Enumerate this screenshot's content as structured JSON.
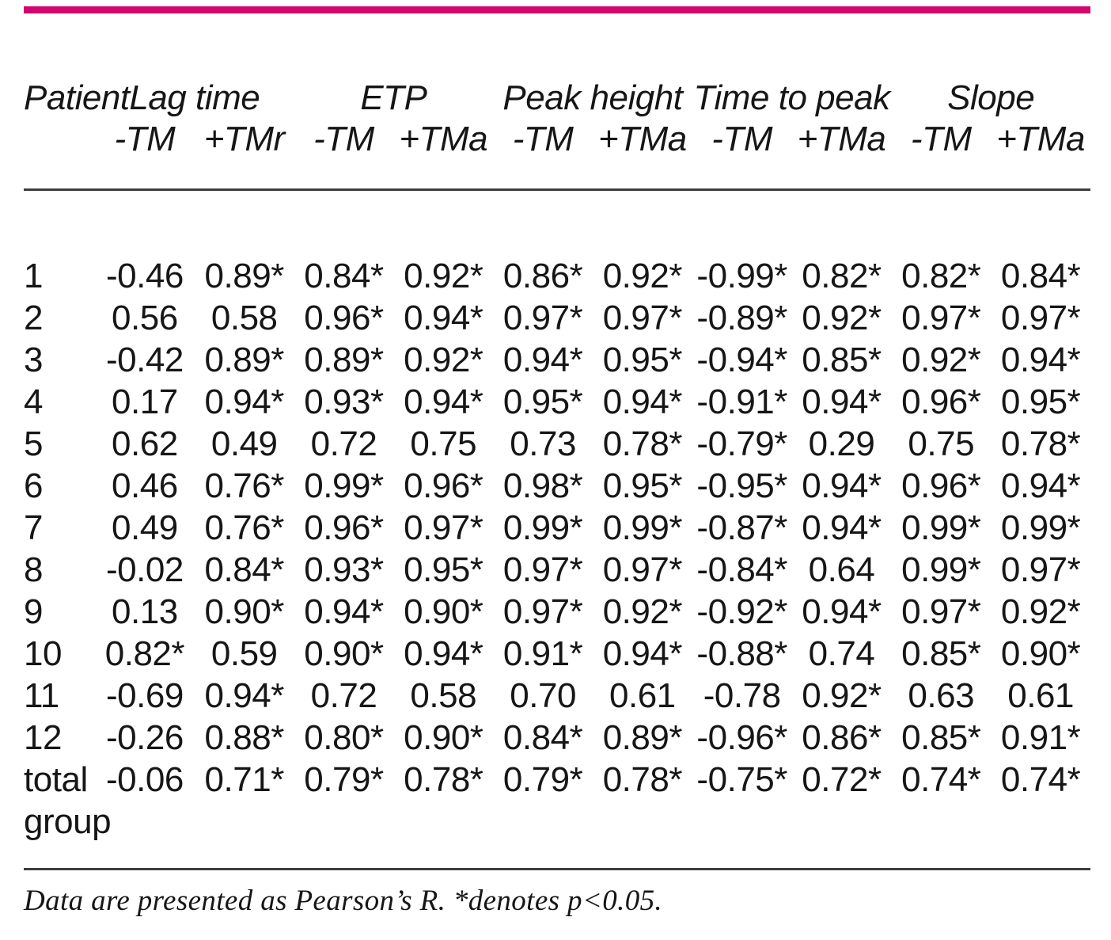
{
  "page": {
    "accent_color": "#d1066f",
    "rule_color": "#3d3d3d"
  },
  "table": {
    "column_groups": [
      {
        "label": "Patient",
        "span": 1
      },
      {
        "label": "Lag time",
        "span": 2
      },
      {
        "label": "ETP",
        "span": 2
      },
      {
        "label": "Peak height",
        "span": 2
      },
      {
        "label": "Time to peak",
        "span": 2
      },
      {
        "label": "Slope",
        "span": 2
      }
    ],
    "sub_headers": [
      "-TM",
      "+TMr",
      "-TM",
      "+TMa",
      "-TM",
      "+TMa",
      "-TM",
      "+TMa",
      "-TM",
      "+TMa"
    ],
    "rows": [
      {
        "patient": "1",
        "values": [
          "-0.46",
          "0.89*",
          "0.84*",
          "0.92*",
          "0.86*",
          "0.92*",
          "-0.99*",
          "0.82*",
          "0.82*",
          "0.84*"
        ]
      },
      {
        "patient": "2",
        "values": [
          "0.56",
          "0.58",
          "0.96*",
          "0.94*",
          "0.97*",
          "0.97*",
          "-0.89*",
          "0.92*",
          "0.97*",
          "0.97*"
        ]
      },
      {
        "patient": "3",
        "values": [
          "-0.42",
          "0.89*",
          "0.89*",
          "0.92*",
          "0.94*",
          "0.95*",
          "-0.94*",
          "0.85*",
          "0.92*",
          "0.94*"
        ]
      },
      {
        "patient": "4",
        "values": [
          "0.17",
          "0.94*",
          "0.93*",
          "0.94*",
          "0.95*",
          "0.94*",
          "-0.91*",
          "0.94*",
          "0.96*",
          "0.95*"
        ]
      },
      {
        "patient": "5",
        "values": [
          "0.62",
          "0.49",
          "0.72",
          "0.75",
          "0.73",
          "0.78*",
          "-0.79*",
          "0.29",
          "0.75",
          "0.78*"
        ]
      },
      {
        "patient": "6",
        "values": [
          "0.46",
          "0.76*",
          "0.99*",
          "0.96*",
          "0.98*",
          "0.95*",
          "-0.95*",
          "0.94*",
          "0.96*",
          "0.94*"
        ]
      },
      {
        "patient": "7",
        "values": [
          "0.49",
          "0.76*",
          "0.96*",
          "0.97*",
          "0.99*",
          "0.99*",
          "-0.87*",
          "0.94*",
          "0.99*",
          "0.99*"
        ]
      },
      {
        "patient": "8",
        "values": [
          "-0.02",
          "0.84*",
          "0.93*",
          "0.95*",
          "0.97*",
          "0.97*",
          "-0.84*",
          "0.64",
          "0.99*",
          "0.97*"
        ]
      },
      {
        "patient": "9",
        "values": [
          "0.13",
          "0.90*",
          "0.94*",
          "0.90*",
          "0.97*",
          "0.92*",
          "-0.92*",
          "0.94*",
          "0.97*",
          "0.92*"
        ]
      },
      {
        "patient": "10",
        "values": [
          "0.82*",
          "0.59",
          "0.90*",
          "0.94*",
          "0.91*",
          "0.94*",
          "-0.88*",
          "0.74",
          "0.85*",
          "0.90*"
        ]
      },
      {
        "patient": "11",
        "values": [
          "-0.69",
          "0.94*",
          "0.72",
          "0.58",
          "0.70",
          "0.61",
          "-0.78",
          "0.92*",
          "0.63",
          "0.61"
        ]
      },
      {
        "patient": "12",
        "values": [
          "-0.26",
          "0.88*",
          "0.80*",
          "0.90*",
          "0.84*",
          "0.89*",
          "-0.96*",
          "0.86*",
          "0.85*",
          "0.91*"
        ]
      },
      {
        "patient": "total group",
        "values": [
          "-0.06",
          "0.71*",
          "0.79*",
          "0.78*",
          "0.79*",
          "0.78*",
          "-0.75*",
          "0.72*",
          "0.74*",
          "0.74*"
        ]
      }
    ]
  },
  "footnote": "Data are presented as Pearson’s R. *denotes p<0.05."
}
